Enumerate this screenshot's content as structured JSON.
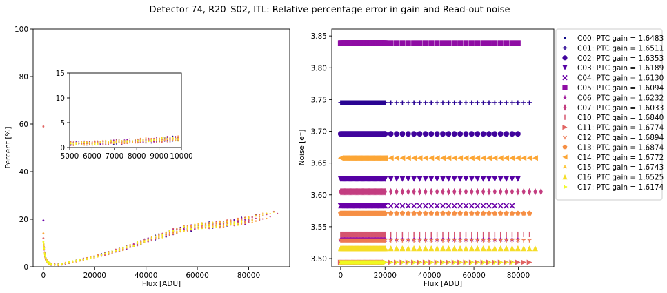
{
  "figure": {
    "title": "Detector 74, R20_S02, ITL: Relative percentage error in gain and Read-out noise"
  },
  "chart_data": [
    {
      "type": "scatter",
      "name": "gain-error",
      "xlabel": "Flux [ADU]",
      "ylabel": "Percent [%]",
      "xlim": [
        -4000,
        96000
      ],
      "ylim": [
        0,
        100
      ],
      "xticks": [
        0,
        20000,
        40000,
        60000,
        80000
      ],
      "yticks": [
        0,
        20,
        40,
        60,
        80,
        100
      ],
      "curve": {
        "x": [
          200,
          500,
          1000,
          2000,
          3000,
          4000,
          5000,
          6000,
          8000,
          10000,
          15000,
          20000,
          25000,
          30000,
          35000,
          40000,
          45000,
          50000,
          55000,
          60000,
          65000,
          70000,
          75000,
          80000,
          85000,
          90000
        ],
        "y": [
          9,
          5,
          3,
          1.6,
          1.0,
          0.8,
          0.8,
          0.9,
          1.3,
          1.8,
          3.0,
          4.3,
          5.6,
          7.3,
          9.0,
          11.0,
          12.8,
          14.5,
          16.0,
          17.0,
          17.5,
          18.0,
          18.8,
          19.8,
          21.0,
          22.0
        ]
      },
      "outliers": [
        {
          "x": 0,
          "y": 59,
          "color": "#e16462"
        },
        {
          "x": 0,
          "y": 19.5,
          "color": "#6a00a8"
        },
        {
          "x": 0,
          "y": 14,
          "color": "#fca636"
        },
        {
          "x": 0,
          "y": 12,
          "color": "#e16462"
        },
        {
          "x": 0,
          "y": 10.5,
          "color": "#f0f921"
        }
      ],
      "inset": {
        "xlim": [
          5000,
          10000
        ],
        "ylim": [
          0,
          15
        ],
        "xticks": [
          5000,
          6000,
          7000,
          8000,
          9000,
          10000
        ],
        "yticks": [
          0,
          5,
          10,
          15
        ]
      }
    },
    {
      "type": "scatter",
      "name": "read-noise",
      "xlabel": "Flux [ADU]",
      "ylabel": "Noise [e⁻]",
      "xlim": [
        -4000,
        96000
      ],
      "ylim": [
        3.487,
        3.861
      ],
      "xticks": [
        0,
        20000,
        40000,
        60000,
        80000
      ],
      "yticks": [
        3.5,
        3.55,
        3.6,
        3.65,
        3.7,
        3.75,
        3.8,
        3.85
      ],
      "series": [
        {
          "name": "C00: PTC gain = 1.6483",
          "noise": 3.494,
          "xmax": 70000,
          "marker": "dot",
          "color": "#0d0887"
        },
        {
          "name": "C01: PTC gain = 1.6511",
          "noise": 3.745,
          "xmax": 85000,
          "marker": "plus",
          "color": "#2a0593"
        },
        {
          "name": "C02: PTC gain = 1.6353",
          "noise": 3.696,
          "xmax": 80000,
          "marker": "circle",
          "color": "#41049d"
        },
        {
          "name": "C03: PTC gain = 1.6189",
          "noise": 3.625,
          "xmax": 80000,
          "marker": "triangle-down",
          "color": "#5601a4"
        },
        {
          "name": "C04: PTC gain = 1.6130",
          "noise": 3.583,
          "xmax": 78000,
          "marker": "x",
          "color": "#6a00a8"
        },
        {
          "name": "C05: PTC gain = 1.6094",
          "noise": 3.839,
          "xmax": 81000,
          "marker": "square",
          "color": "#8f0da4"
        },
        {
          "name": "C06: PTC gain = 1.6232",
          "noise": 3.53,
          "xmax": 82000,
          "marker": "star",
          "color": "#a01a9c"
        },
        {
          "name": "C07: PTC gain = 1.6033",
          "noise": 3.605,
          "xmax": 92000,
          "marker": "thin-diamond",
          "color": "#c33d80"
        },
        {
          "name": "C10: PTC gain = 1.6840",
          "noise": 3.538,
          "xmax": 86000,
          "marker": "vline",
          "color": "#d5546e"
        },
        {
          "name": "C11: PTC gain = 1.6774",
          "noise": 3.494,
          "xmax": 86000,
          "marker": "triangle-right",
          "color": "#e16462"
        },
        {
          "name": "C12: PTC gain = 1.6894",
          "noise": 3.529,
          "xmax": 85000,
          "marker": "tri-down",
          "color": "#ed7953"
        },
        {
          "name": "C13: PTC gain = 1.6874",
          "noise": 3.571,
          "xmax": 85000,
          "marker": "pentagon",
          "color": "#f68f44"
        },
        {
          "name": "C14: PTC gain = 1.6772",
          "noise": 3.658,
          "xmax": 88000,
          "marker": "triangle-left",
          "color": "#fca636"
        },
        {
          "name": "C15: PTC gain = 1.6743",
          "noise": 3.516,
          "xmax": 82000,
          "marker": "tri-up",
          "color": "#fcc229"
        },
        {
          "name": "C16: PTC gain = 1.6525",
          "noise": 3.516,
          "xmax": 90000,
          "marker": "triangle-up",
          "color": "#f5dd27"
        },
        {
          "name": "C17: PTC gain = 1.6174",
          "noise": 3.494,
          "xmax": 78000,
          "marker": "tri-right",
          "color": "#f0f921"
        }
      ]
    }
  ]
}
